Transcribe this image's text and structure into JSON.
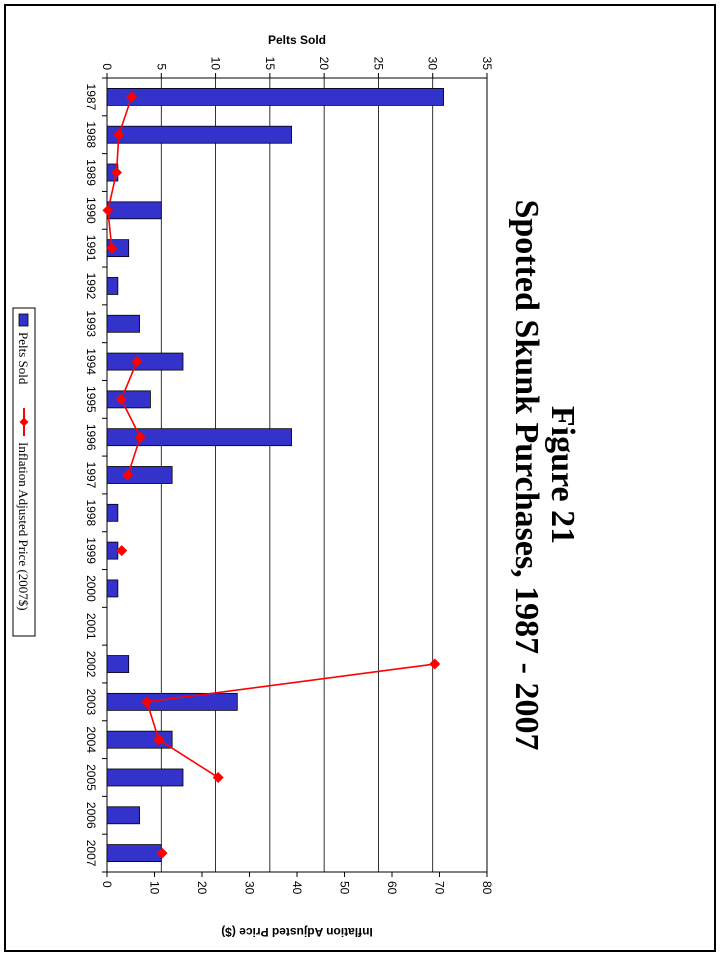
{
  "chart_data": {
    "type": "bar",
    "title": "Figure 21",
    "subtitle": "Spotted Skunk Purchases, 1987 - 2007",
    "categories": [
      "1987",
      "1988",
      "1989",
      "1990",
      "1991",
      "1992",
      "1993",
      "1994",
      "1995",
      "1996",
      "1997",
      "1998",
      "1999",
      "2000",
      "2001",
      "2002",
      "2003",
      "2004",
      "2005",
      "2006",
      "2007"
    ],
    "series": [
      {
        "name": "Pelts Sold",
        "type": "bar",
        "axis": "pelts",
        "color": "#3333cc",
        "values": [
          31,
          17,
          1,
          5,
          2,
          1,
          3,
          7,
          4,
          17,
          6,
          1,
          1,
          1,
          0,
          2,
          12,
          6,
          7,
          3,
          5
        ]
      },
      {
        "name": "Inflation Adjusted Price (2007$)",
        "type": "line",
        "axis": "price",
        "color": "#ff0000",
        "values": [
          5.2,
          2.5,
          2.0,
          0.2,
          1.0,
          null,
          null,
          6.3,
          3.0,
          7.0,
          4.4,
          null,
          3.1,
          null,
          null,
          69.0,
          8.4,
          10.9,
          23.4,
          null,
          11.6
        ]
      }
    ],
    "pelts_axis": {
      "label": "Pelts Sold",
      "min": 0,
      "max": 35,
      "step": 5,
      "ticks": [
        "0",
        "5",
        "10",
        "15",
        "20",
        "25",
        "30",
        "35"
      ]
    },
    "price_axis": {
      "label": "Inflation Adjusted Price ($)",
      "min": 0,
      "max": 80,
      "step": 10,
      "ticks": [
        "0",
        "10",
        "20",
        "30",
        "40",
        "50",
        "60",
        "70",
        "80"
      ]
    },
    "grid": true,
    "legend_position": "left",
    "orientation": "rotated-90-clockwise"
  }
}
